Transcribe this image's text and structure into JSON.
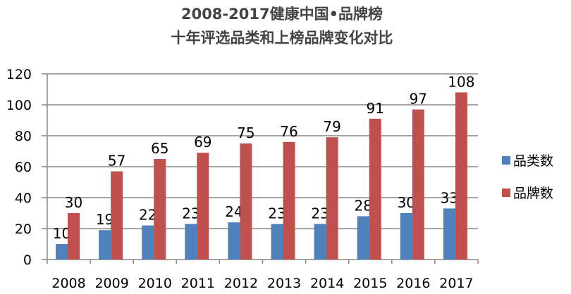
{
  "chart_data": {
    "type": "bar",
    "title": [
      "2008-2017健康中国•品牌榜",
      "十年评选品类和上榜品牌变化对比"
    ],
    "categories": [
      "2008",
      "2009",
      "2010",
      "2011",
      "2012",
      "2013",
      "2014",
      "2015",
      "2016",
      "2017"
    ],
    "series": [
      {
        "name": "品类数",
        "color": "#4f81bd",
        "values": [
          10,
          19,
          22,
          23,
          24,
          23,
          23,
          28,
          30,
          33
        ]
      },
      {
        "name": "品牌数",
        "color": "#c0504d",
        "values": [
          30,
          57,
          65,
          69,
          75,
          76,
          79,
          91,
          97,
          108
        ]
      }
    ],
    "yticks": [
      "0",
      "20",
      "40",
      "60",
      "80",
      "100",
      "120"
    ],
    "ylim": [
      0,
      120
    ],
    "grid": true,
    "legend": "right"
  }
}
